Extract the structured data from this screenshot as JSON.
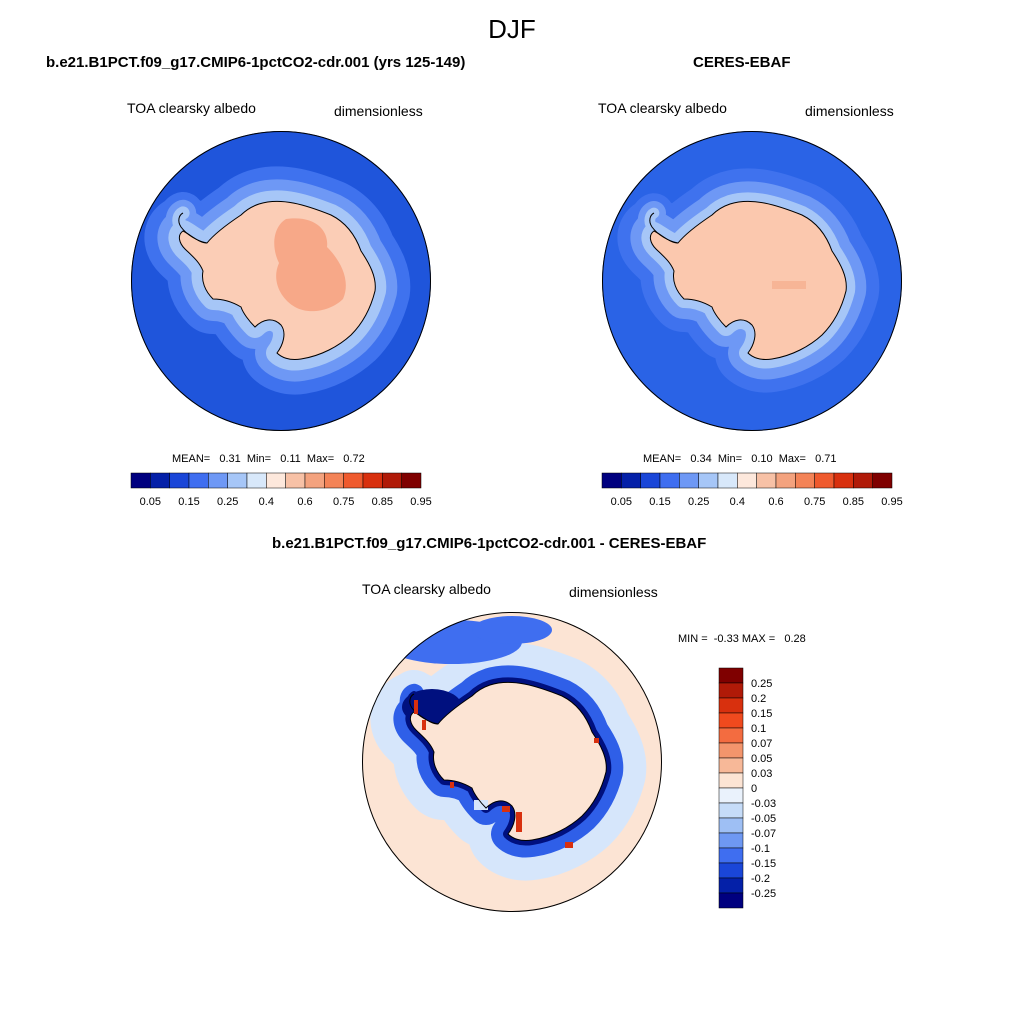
{
  "title": "DJF",
  "panels": [
    {
      "header": "b.e21.B1PCT.f09_g17.CMIP6-1pctCO2-cdr.001 (yrs 125-149)",
      "variable": "TOA clearsky albedo",
      "units": "dimensionless",
      "stats_text": "MEAN=   0.31  Min=   0.11  Max=   0.72",
      "mean": 0.31,
      "min": 0.11,
      "max": 0.72
    },
    {
      "header": "CERES-EBAF",
      "variable": "TOA clearsky albedo",
      "units": "dimensionless",
      "stats_text": "MEAN=   0.34  Min=   0.10  Max=   0.71",
      "mean": 0.34,
      "min": 0.1,
      "max": 0.71
    },
    {
      "header": "b.e21.B1PCT.f09_g17.CMIP6-1pctCO2-cdr.001 - CERES-EBAF",
      "variable": "TOA clearsky albedo",
      "units": "dimensionless",
      "stats_text": "MIN =  -0.33 MAX =   0.28",
      "min": -0.33,
      "max": 0.28
    }
  ],
  "colorbar_abs": {
    "labels": [
      "0.05",
      "0.15",
      "0.25",
      "0.4",
      "0.6",
      "0.75",
      "0.85",
      "0.95"
    ],
    "colors": [
      "#00007f",
      "#0420a8",
      "#1a46d8",
      "#3f6ef0",
      "#6e98f5",
      "#a6c6f7",
      "#d8e8fa",
      "#fde8dc",
      "#f7c1a6",
      "#f3a27e",
      "#f38357",
      "#ef5a2e",
      "#d8300e",
      "#b01a08",
      "#7f0000"
    ]
  },
  "colorbar_diff": {
    "labels": [
      "0.25",
      "0.2",
      "0.15",
      "0.1",
      "0.07",
      "0.05",
      "0.03",
      "0",
      "-0.03",
      "-0.05",
      "-0.07",
      "-0.1",
      "-0.15",
      "-0.2",
      "-0.25"
    ],
    "colors": [
      "#7f0000",
      "#b01a08",
      "#d8300e",
      "#f04a1e",
      "#f36c40",
      "#f3956c",
      "#f7b898",
      "#fce4d4",
      "#eaf2fc",
      "#c6dcf8",
      "#9ebff4",
      "#6e98f2",
      "#3f6ef0",
      "#1a46d8",
      "#0420a8",
      "#00007f"
    ]
  },
  "map_colors": {
    "ocean_model": "#1f55db",
    "ocean_obs": "#2a63e6",
    "ice_band1": "#3f72ee",
    "ice_band2": "#6e98f5",
    "ice_band3": "#a6c6f7",
    "land_model": "#fbcdb6",
    "land_model_high": "#f7a888",
    "land_obs": "#fbc8ae",
    "diff_ocean": "#fce4d4",
    "diff_light_blue": "#d6e6fb",
    "diff_blue": "#2f5fe8",
    "diff_dark_blue": "#00107f",
    "diff_red": "#d8300e",
    "coast": "#000000"
  }
}
